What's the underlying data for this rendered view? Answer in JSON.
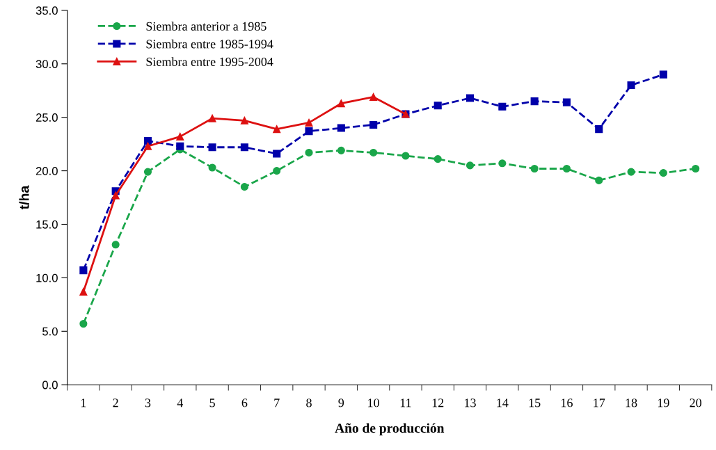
{
  "chart_data": {
    "type": "line",
    "xlabel": "Año de producción",
    "ylabel": "t/ha",
    "categories": [
      "1",
      "2",
      "3",
      "4",
      "5",
      "6",
      "7",
      "8",
      "9",
      "10",
      "11",
      "12",
      "13",
      "14",
      "15",
      "16",
      "17",
      "18",
      "19",
      "20"
    ],
    "series": [
      {
        "name": "Siembra anterior a 1985",
        "color": "#1aa64a",
        "marker": "circle",
        "line_style": "dashed",
        "values": [
          5.7,
          13.1,
          19.9,
          22.0,
          20.3,
          18.5,
          20.0,
          21.7,
          21.9,
          21.7,
          21.4,
          21.1,
          20.5,
          20.7,
          20.2,
          20.2,
          19.1,
          19.9,
          19.8,
          20.2
        ]
      },
      {
        "name": "Siembra entre 1985-1994",
        "color": "#0000aa",
        "marker": "square",
        "line_style": "dashed",
        "values": [
          10.7,
          18.1,
          22.8,
          22.3,
          22.2,
          22.2,
          21.6,
          23.7,
          24.0,
          24.3,
          25.3,
          26.1,
          26.8,
          26.0,
          26.5,
          26.4,
          23.9,
          28.0,
          29.0,
          null
        ]
      },
      {
        "name": "Siembra entre 1995-2004",
        "color": "#dd1111",
        "marker": "triangle",
        "line_style": "solid",
        "values": [
          8.7,
          17.7,
          22.3,
          23.2,
          24.9,
          24.7,
          23.9,
          24.5,
          26.3,
          26.9,
          25.3,
          null,
          null,
          null,
          null,
          null,
          null,
          null,
          null,
          null
        ]
      }
    ],
    "ylim": [
      0,
      35
    ],
    "yticks": [
      {
        "value": 0,
        "label": "0.0"
      },
      {
        "value": 5,
        "label": "5.0"
      },
      {
        "value": 10,
        "label": "10.0"
      },
      {
        "value": 15,
        "label": "15.0"
      },
      {
        "value": 20,
        "label": "20.0"
      },
      {
        "value": 25,
        "label": "25.0"
      },
      {
        "value": 30,
        "label": "30.0"
      },
      {
        "value": 35,
        "label": "35.0"
      }
    ],
    "grid": false,
    "legend": "top left"
  }
}
